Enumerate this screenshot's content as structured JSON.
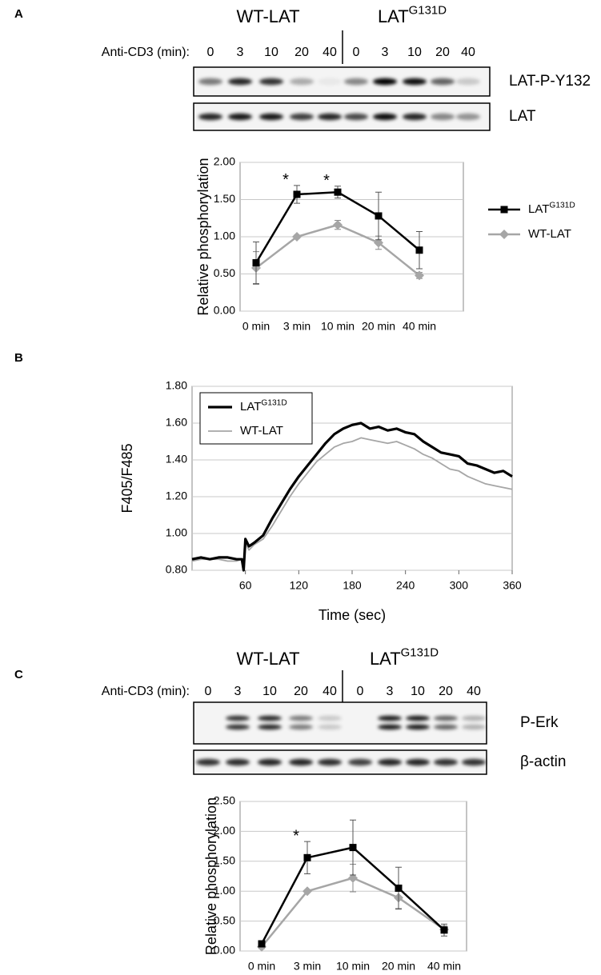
{
  "panel_labels": [
    "A",
    "B",
    "C"
  ],
  "blots": [
    {
      "groups": [
        {
          "name": "WT-LAT"
        },
        {
          "name": "LAT",
          "name_superscript": "G131D"
        }
      ],
      "lane_axis_label": "Anti-CD3 (min):",
      "lanes": [
        "0",
        "3",
        "10",
        "20",
        "40",
        "0",
        "3",
        "10",
        "20",
        "40"
      ],
      "rows": [
        "LAT-P-Y132",
        "LAT"
      ]
    },
    {
      "groups": [
        {
          "name": "WT-LAT"
        },
        {
          "name": "LAT",
          "name_superscript": "G131D"
        }
      ],
      "lane_axis_label": "Anti-CD3 (min):",
      "lanes": [
        "0",
        "3",
        "10",
        "20",
        "40",
        "0",
        "3",
        "10",
        "20",
        "40"
      ],
      "rows": [
        "P-Erk",
        "β-actin"
      ]
    }
  ],
  "chart_data": [
    {
      "type": "line",
      "ylabel": "Relative phosphorylation",
      "categories": [
        "0 min",
        "3 min",
        "10 min",
        "20 min",
        "40 min"
      ],
      "ylim": [
        0,
        2
      ],
      "yticks": [
        {
          "value": 0,
          "label": "0.00"
        },
        {
          "value": 0.5,
          "label": "0.50"
        },
        {
          "value": 1,
          "label": "1.00"
        },
        {
          "value": 1.5,
          "label": "1.50"
        },
        {
          "value": 2,
          "label": "2.00"
        }
      ],
      "grid": true,
      "legend": "right",
      "series": [
        {
          "name": "LAT",
          "name_superscript": "G131D",
          "color": "#000000",
          "marker": "square",
          "values": [
            0.65,
            1.57,
            1.6,
            1.28,
            0.82
          ],
          "errors": [
            0.28,
            0.12,
            0.08,
            0.32,
            0.25
          ]
        },
        {
          "name": "WT-LAT",
          "color": "#a6a6a6",
          "marker": "diamond",
          "values": [
            0.58,
            1.0,
            1.16,
            0.92,
            0.48
          ],
          "errors": [
            0.22,
            0.02,
            0.06,
            0.09,
            0.04
          ]
        }
      ],
      "annotations": [
        {
          "text": "*",
          "x": "3 min"
        },
        {
          "text": "*",
          "x": "10 min"
        }
      ]
    },
    {
      "type": "line",
      "xlabel": "Time (sec)",
      "ylabel": "F405/F485",
      "x": [
        0,
        10,
        20,
        30,
        40,
        50,
        56,
        58,
        60,
        64,
        70,
        80,
        90,
        100,
        110,
        120,
        130,
        140,
        150,
        160,
        170,
        180,
        190,
        200,
        210,
        220,
        230,
        240,
        250,
        260,
        270,
        280,
        290,
        300,
        310,
        320,
        330,
        340,
        350,
        360
      ],
      "xlim": [
        0,
        360
      ],
      "xticks": [
        60,
        120,
        180,
        240,
        300,
        360
      ],
      "ylim": [
        0.8,
        1.8
      ],
      "yticks": [
        {
          "value": 0.8,
          "label": "0.80"
        },
        {
          "value": 1,
          "label": "1.00"
        },
        {
          "value": 1.2,
          "label": "1.20"
        },
        {
          "value": 1.4,
          "label": "1.40"
        },
        {
          "value": 1.6,
          "label": "1.60"
        },
        {
          "value": 1.8,
          "label": "1.80"
        }
      ],
      "grid": true,
      "legend": "upper left",
      "series": [
        {
          "name": "LAT",
          "name_superscript": "G131D",
          "color": "#000000",
          "line_width": 3.2,
          "values": [
            0.86,
            0.87,
            0.86,
            0.87,
            0.87,
            0.86,
            0.86,
            0.8,
            0.97,
            0.93,
            0.95,
            0.99,
            1.08,
            1.16,
            1.24,
            1.31,
            1.37,
            1.43,
            1.49,
            1.54,
            1.57,
            1.59,
            1.6,
            1.57,
            1.58,
            1.56,
            1.57,
            1.55,
            1.54,
            1.5,
            1.47,
            1.44,
            1.43,
            1.42,
            1.38,
            1.37,
            1.35,
            1.33,
            1.34,
            1.31
          ]
        },
        {
          "name": "WT-LAT",
          "color": "#a6a6a6",
          "line_width": 1.8,
          "values": [
            0.85,
            0.86,
            0.86,
            0.86,
            0.85,
            0.85,
            0.86,
            0.84,
            0.95,
            0.91,
            0.94,
            0.97,
            1.04,
            1.12,
            1.2,
            1.27,
            1.33,
            1.39,
            1.43,
            1.47,
            1.49,
            1.5,
            1.52,
            1.51,
            1.5,
            1.49,
            1.5,
            1.48,
            1.46,
            1.43,
            1.41,
            1.38,
            1.35,
            1.34,
            1.31,
            1.29,
            1.27,
            1.26,
            1.25,
            1.24
          ]
        }
      ]
    },
    {
      "type": "line",
      "ylabel": "Relative phosphorylation",
      "categories": [
        "0 min",
        "3 min",
        "10 min",
        "20 min",
        "40 min"
      ],
      "ylim": [
        0,
        2.5
      ],
      "yticks": [
        {
          "value": 0,
          "label": "0.00"
        },
        {
          "value": 0.5,
          "label": "0.50"
        },
        {
          "value": 1,
          "label": "1.00"
        },
        {
          "value": 1.5,
          "label": "1.50"
        },
        {
          "value": 2,
          "label": "2.00"
        },
        {
          "value": 2.5,
          "label": "2.50"
        }
      ],
      "grid": true,
      "series": [
        {
          "color": "#000000",
          "marker": "square",
          "values": [
            0.12,
            1.56,
            1.73,
            1.05,
            0.35
          ],
          "errors": [
            0.03,
            0.27,
            0.46,
            0.35,
            0.1
          ]
        },
        {
          "color": "#a6a6a6",
          "marker": "diamond",
          "values": [
            0.07,
            1.0,
            1.22,
            0.89,
            0.36
          ],
          "errors": [
            0.03,
            0.02,
            0.23,
            0.18,
            0.06
          ]
        }
      ],
      "annotations": [
        {
          "text": "*",
          "x": "3 min"
        }
      ]
    }
  ]
}
